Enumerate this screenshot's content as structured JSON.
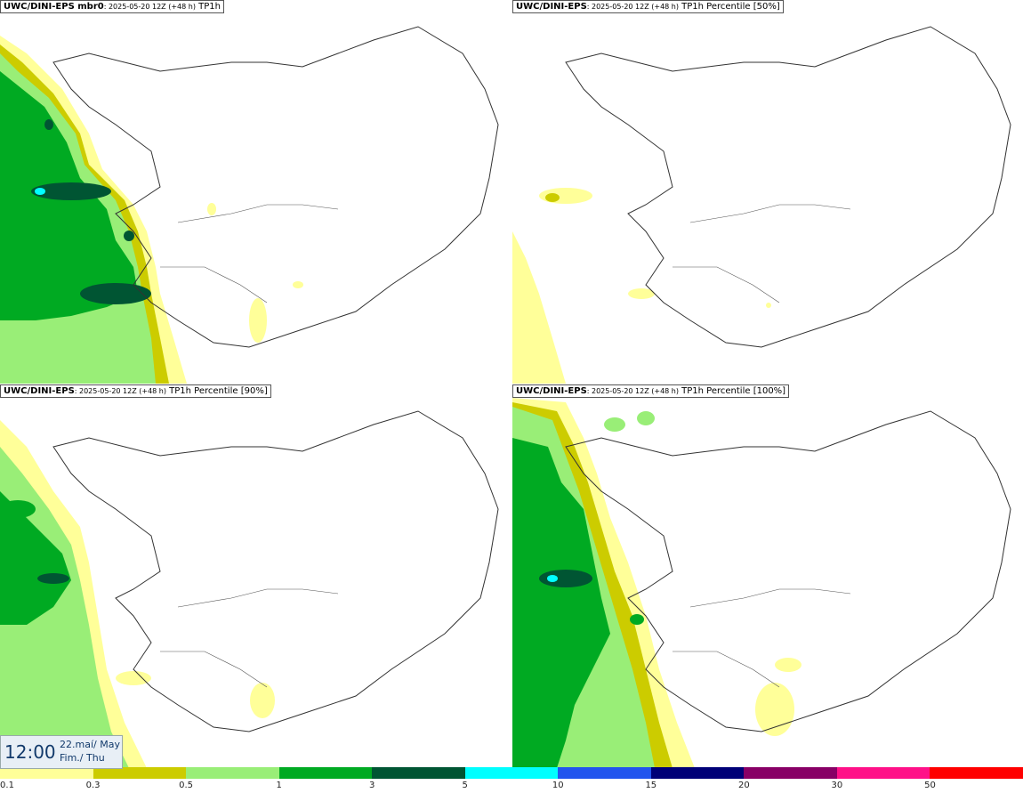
{
  "panels": [
    {
      "title_bold": "UWC/DINI-EPS mbr0",
      "title_small": ": 2025-05-20 12Z (+48 h)",
      "title_rest": " TP1h"
    },
    {
      "title_bold": "UWC/DINI-EPS",
      "title_small": ": 2025-05-20 12Z (+48 h)",
      "title_rest": " TP1h Percentile [50%]"
    },
    {
      "title_bold": "UWC/DINI-EPS",
      "title_small": ": 2025-05-20 12Z (+48 h)",
      "title_rest": " TP1h Percentile [90%]"
    },
    {
      "title_bold": "UWC/DINI-EPS",
      "title_small": ": 2025-05-20 12Z (+48 h)",
      "title_rest": " TP1h Percentile [100%]"
    }
  ],
  "timebox": {
    "time": "12:00",
    "date_line1": "22.maí/ May",
    "date_line2": "Fim./ Thu"
  },
  "legend": {
    "labels": [
      "0.1",
      "0.3",
      "0.5",
      "1",
      "3",
      "5",
      "10",
      "15",
      "20",
      "30",
      "50"
    ],
    "colors": [
      "#ffff99",
      "#cccc00",
      "#99ee77",
      "#00aa22",
      "#005533",
      "#00ffff",
      "#2255ee",
      "#000077",
      "#880066",
      "#ff1188",
      "#ff0000"
    ]
  },
  "colors": {
    "lightyellow": "#ffff99",
    "olive": "#cccc00",
    "lightgreen": "#99ee77",
    "green": "#00aa22",
    "darkgreen": "#005533",
    "cyan": "#00ffff",
    "coast": "#333333"
  }
}
